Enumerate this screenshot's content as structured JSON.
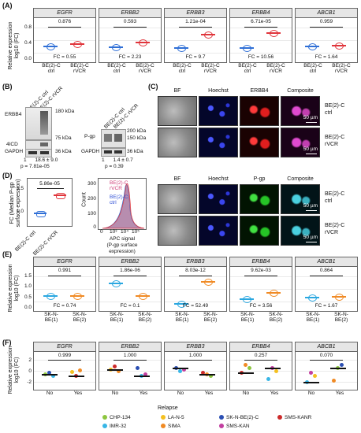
{
  "colors": {
    "ctrl": "#2f6fd6",
    "rvcr": "#e0353b",
    "cyan": "#2aa7e0",
    "orange": "#f08a24",
    "hoechst": "#1d2bd8",
    "erbb4": "#d01818",
    "pgp": "#1da31d",
    "composite": "#b84bb0"
  },
  "panelA": {
    "label": "(A)",
    "ylabel": "Relative expression\nlog10 (FC)",
    "yticks": [
      "0.8",
      "0.4",
      "0.0"
    ],
    "xticks": [
      "BE(2)-C\nctrl",
      "BE(2)-C\nrVCR"
    ],
    "facets": [
      {
        "gene": "EGFR",
        "p": "0.876",
        "fc": "FC = 0.55"
      },
      {
        "gene": "ERBB2",
        "p": "0.593",
        "fc": "FC = 2.23"
      },
      {
        "gene": "ERBB3",
        "p": "1.21e-04",
        "fc": "FC = 9.7"
      },
      {
        "gene": "ERBB4",
        "p": "6.71e-05",
        "fc": "FC = 10.56"
      },
      {
        "gene": "ABCB1",
        "p": "0.959",
        "fc": "FC = 1.64"
      }
    ]
  },
  "panelB": {
    "label": "(B)",
    "blot1": {
      "lanes": [
        "BE(2)-C ctrl",
        "BE(2)-C rVCR"
      ],
      "erbb4": "ERBB4",
      "icd": "4ICD",
      "gapdh": "GAPDH",
      "kda180": "180 kDa",
      "kda75": "75 kDa",
      "kda36": "36 kDa",
      "quant": "1      18.6 ± 9.0",
      "p": "p = 7.81e-05"
    },
    "blot2": {
      "lanes": [
        "BE(2)-C ctrl",
        "BE(2)-C rVCR"
      ],
      "pgp": "P-gp",
      "gapdh": "GAPDH",
      "kda200": "200 kDa",
      "kda150": "150 kDa",
      "kda36": "36 kDa",
      "quant": "1      1.4 ± 0.7",
      "p": "p = 0.39"
    }
  },
  "panelC": {
    "label": "(C)",
    "cols1": [
      "BF",
      "Hoechst",
      "ERBB4",
      "Composite"
    ],
    "cols2": [
      "BF",
      "Hoechst",
      "P-gp",
      "Composite"
    ],
    "rows": [
      "BE(2)-C\nctrl",
      "BE(2)-C\nrVCR"
    ],
    "scale": "50 µm"
  },
  "panelD": {
    "label": "(D)",
    "ylabel": "FC (Median P-gp\nsurface expression)",
    "p": "5.86e-05",
    "yticks": [
      "1.5",
      "1.0"
    ],
    "xticks": [
      "BE(2)-C ctrl",
      "BE(2)-C rVCR"
    ],
    "hist": {
      "ylabel": "Count",
      "xlabel": "APC signal\n(P-gp surface expression)",
      "yticks": [
        "300",
        "200",
        "100",
        "0"
      ],
      "xticks": [
        "0",
        "10³",
        "10⁴",
        "10⁵"
      ],
      "legend1": "BE(2)-C\nrVCR",
      "legend2": "BE(2)-C\nctrl"
    }
  },
  "panelE": {
    "label": "(E)",
    "ylabel": "Relative expression\nlog10 (FC)",
    "yticks": [
      "1.5",
      "1.0",
      "0.5",
      "0.0"
    ],
    "xticks": [
      "SK-N-\nBE(1)",
      "SK-N-\nBE(2)"
    ],
    "facets": [
      {
        "gene": "EGFR",
        "p": "0.991",
        "fc": "FC = 0.74"
      },
      {
        "gene": "ERBB2",
        "p": "1.86e-06",
        "fc": "FC = 0.1"
      },
      {
        "gene": "ERBB3",
        "p": "8.03e-12",
        "fc": "FC = 52.49"
      },
      {
        "gene": "ERBB4",
        "p": "9.62e-03",
        "fc": "FC = 3.56"
      },
      {
        "gene": "ABCB1",
        "p": "0.864",
        "fc": "FC = 1.67"
      }
    ]
  },
  "panelF": {
    "label": "(F)",
    "ylabel": "Relative expression\nlog10 (FC)",
    "yticks": [
      "2",
      "0",
      "-2"
    ],
    "xticks": [
      "No",
      "Yes"
    ],
    "xlabel": "Relapse",
    "facets": [
      {
        "gene": "EGFR",
        "p": "0.999"
      },
      {
        "gene": "ERBB2",
        "p": "1.000"
      },
      {
        "gene": "ERBB3",
        "p": "1.000"
      },
      {
        "gene": "ERBB4",
        "p": "0.257"
      },
      {
        "gene": "ABCB1",
        "p": "0.070"
      }
    ],
    "legend": [
      {
        "name": "CHP-134",
        "color": "#8dc63f"
      },
      {
        "name": "LA-N-5",
        "color": "#f4c020"
      },
      {
        "name": "SK-N-BE(2)-C",
        "color": "#2b4fb3"
      },
      {
        "name": "SMS-KANR",
        "color": "#cc2a2a"
      },
      {
        "name": "IMR-32",
        "color": "#38b6e6"
      },
      {
        "name": "SIMA",
        "color": "#f08a24"
      },
      {
        "name": "SMS-KAN",
        "color": "#c23fa0"
      }
    ]
  }
}
